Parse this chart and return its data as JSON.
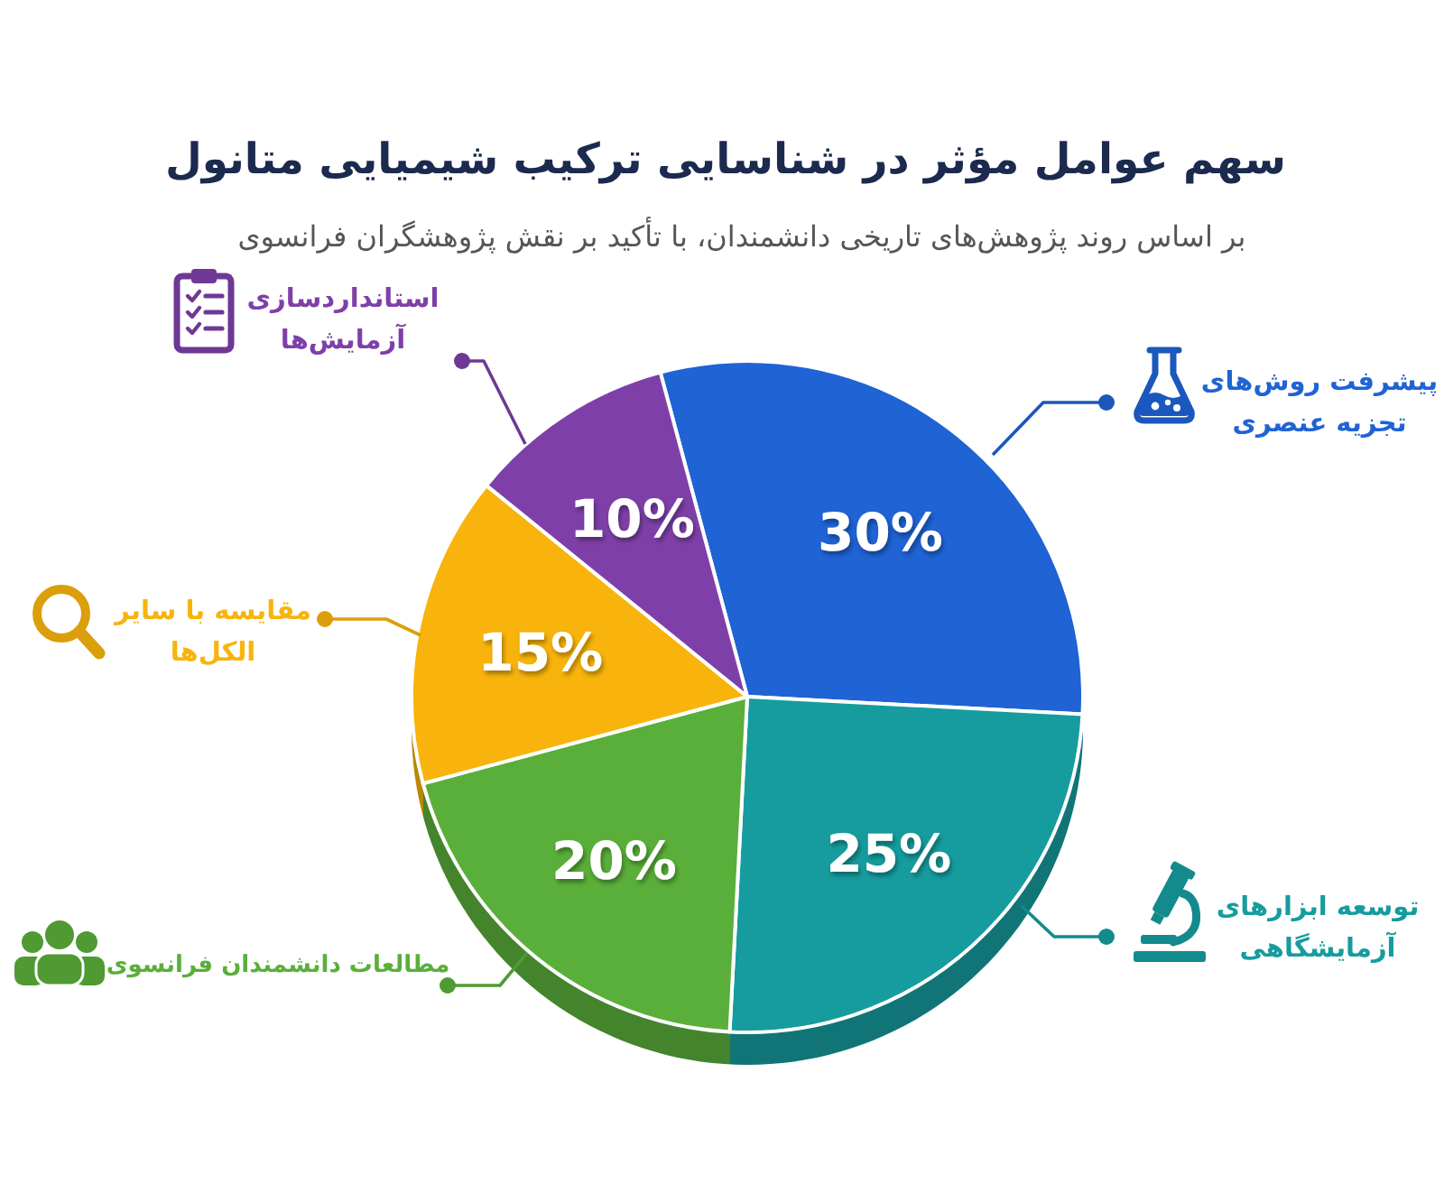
{
  "chart_data": {
    "type": "pie",
    "title": "سهم عوامل مؤثر در شناسایی ترکیب شیمیایی متانول",
    "subtitle": "بر اساس روند پژوهش‌های تاریخی دانشمندان، با تأکید بر نقش پژوهشگران فرانسوی",
    "categories": [
      "پیشرفت روش‌های تجزیه عنصری",
      "توسعه ابزارهای آزمایشگاهی",
      "مطالعات دانشمندان فرانسوی",
      "مقایسه با سایر الکل‌ها",
      "استانداردسازی آزمایش‌ها"
    ],
    "values": [
      30,
      25,
      20,
      15,
      10
    ],
    "colors": [
      "#1f63d5",
      "#169c9e",
      "#5aaf3a",
      "#f8b40c",
      "#7e40a8"
    ],
    "value_labels": [
      "30%",
      "25%",
      "20%",
      "15%",
      "10%"
    ]
  }
}
